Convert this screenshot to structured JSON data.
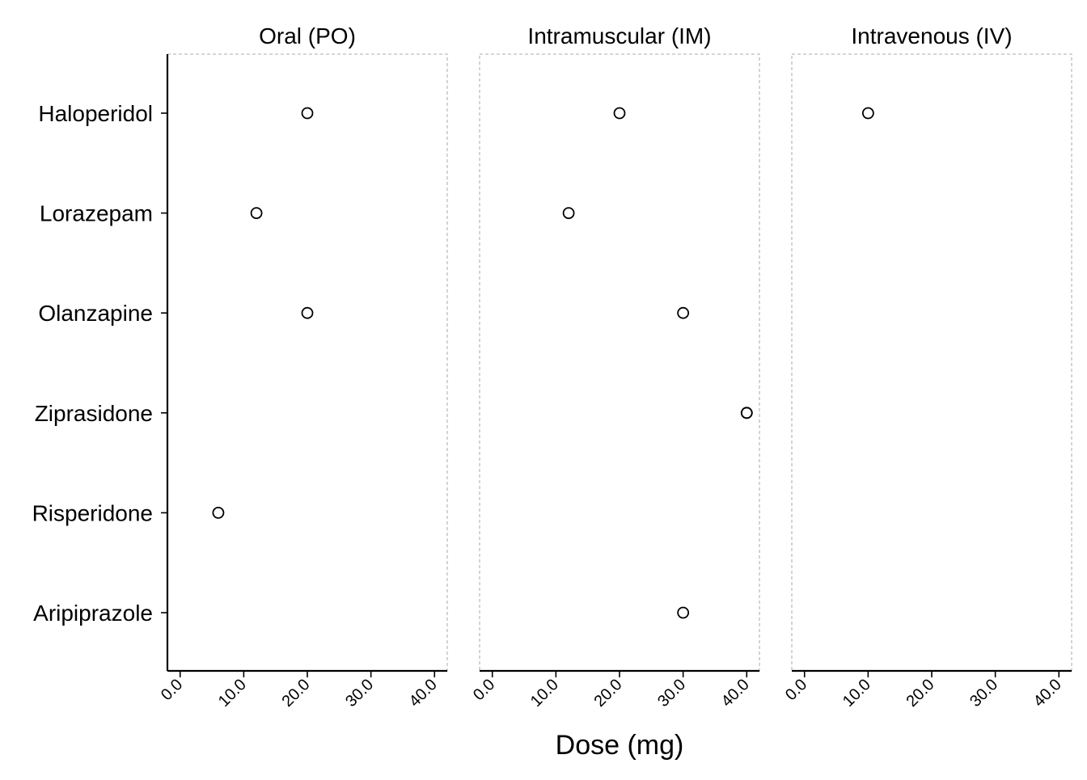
{
  "chart_data": {
    "type": "scatter",
    "xlabel": "Dose (mg)",
    "ylabel": "",
    "xlim": [
      -2,
      42
    ],
    "x_ticks": [
      0,
      10,
      20,
      30,
      40
    ],
    "x_tick_labels": [
      "0.0",
      "10.0",
      "20.0",
      "30.0",
      "40.0"
    ],
    "categories": [
      "Haloperidol",
      "Lorazepam",
      "Olanzapine",
      "Ziprasidone",
      "Risperidone",
      "Aripiprazole"
    ],
    "grid": false,
    "legend": "none",
    "marker": "open-circle",
    "panels": [
      {
        "title": "Oral (PO)",
        "points": [
          {
            "category": "Haloperidol",
            "x": 20
          },
          {
            "category": "Lorazepam",
            "x": 12
          },
          {
            "category": "Olanzapine",
            "x": 20
          },
          {
            "category": "Risperidone",
            "x": 6
          }
        ]
      },
      {
        "title": "Intramuscular (IM)",
        "points": [
          {
            "category": "Haloperidol",
            "x": 20
          },
          {
            "category": "Lorazepam",
            "x": 12
          },
          {
            "category": "Olanzapine",
            "x": 30
          },
          {
            "category": "Ziprasidone",
            "x": 40
          },
          {
            "category": "Ziprasidone",
            "x": 40
          },
          {
            "category": "Aripiprazole",
            "x": 30
          }
        ]
      },
      {
        "title": "Intravenous (IV)",
        "points": [
          {
            "category": "Haloperidol",
            "x": 10
          }
        ]
      }
    ]
  }
}
